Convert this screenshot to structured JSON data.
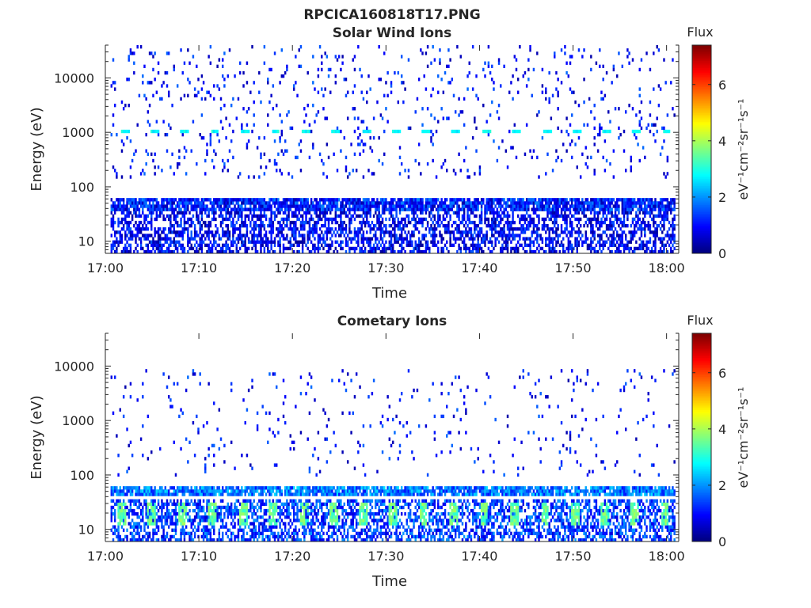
{
  "window": {
    "title": "RPCICA160818T17.PNG"
  },
  "chart_data": [
    {
      "type": "heatmap",
      "title": "Solar Wind Ions",
      "xlabel": "Time",
      "ylabel": "Energy (eV)",
      "x_ticks": [
        "17:00",
        "17:10",
        "17:20",
        "17:30",
        "17:40",
        "17:50",
        "18:00"
      ],
      "x_range_minutes": [
        0,
        61.3
      ],
      "y_scale": "log",
      "y_ticks": [
        10,
        100,
        1000,
        10000
      ],
      "y_tick_labels": [
        "10",
        "100",
        "1000",
        "10000"
      ],
      "ylim": [
        6,
        40000
      ],
      "colorbar": {
        "title": "Flux",
        "label": "eV⁻¹cm⁻²sr⁻¹s⁻¹",
        "range": [
          0,
          7.4
        ],
        "ticks": [
          0,
          2,
          4,
          6
        ],
        "tick_labels": [
          "0",
          "2",
          "4",
          "6"
        ],
        "colormap": "jet"
      },
      "features": {
        "background_dots_density": 0.06,
        "background_dots_energy_range": [
          150,
          40000
        ],
        "band_energy_range": [
          38,
          62
        ],
        "band_mean_flux": 1.1,
        "low_energy_energy_range": [
          6,
          35
        ],
        "low_energy_mean_flux": 1.0,
        "periodic_bursts": {
          "energy": 1050,
          "flux": 2.8,
          "times_min": [
            2.1,
            5.3,
            8.5,
            11.7,
            15.0,
            18.2,
            21.4,
            24.6,
            27.9,
            31.1,
            34.3,
            37.5,
            40.7,
            44.0,
            47.2,
            50.4,
            53.6,
            56.8,
            60.0
          ]
        },
        "grid": false
      }
    },
    {
      "type": "heatmap",
      "title": "Cometary Ions",
      "xlabel": "Time",
      "ylabel": "Energy (eV)",
      "x_ticks": [
        "17:00",
        "17:10",
        "17:20",
        "17:30",
        "17:40",
        "17:50",
        "18:00"
      ],
      "x_range_minutes": [
        0,
        61.3
      ],
      "y_scale": "log",
      "y_ticks": [
        10,
        100,
        1000,
        10000
      ],
      "y_tick_labels": [
        "10",
        "100",
        "1000",
        "10000"
      ],
      "ylim": [
        6,
        40000
      ],
      "colorbar": {
        "title": "Flux",
        "label": "eV⁻¹cm⁻²sr⁻¹s⁻¹",
        "range": [
          0,
          7.4
        ],
        "ticks": [
          0,
          2,
          4,
          6
        ],
        "tick_labels": [
          "0",
          "2",
          "4",
          "6"
        ],
        "colormap": "jet"
      },
      "features": {
        "background_dots_density": 0.035,
        "background_dots_energy_range": [
          100,
          9000
        ],
        "band_energy_range": [
          40,
          62
        ],
        "band_mean_flux": 1.8,
        "low_energy_energy_range": [
          6,
          35
        ],
        "low_energy_mean_flux": 1.5,
        "periodic_bursts": {
          "energy_range": [
            12,
            30
          ],
          "flux": 3.5,
          "times_min": [
            1.8,
            5.0,
            8.3,
            11.5,
            14.7,
            18.0,
            21.2,
            24.4,
            27.6,
            30.8,
            34.0,
            37.3,
            40.5,
            43.7,
            47.0,
            50.2,
            53.4,
            56.6,
            59.8
          ]
        },
        "grid": false
      }
    }
  ]
}
